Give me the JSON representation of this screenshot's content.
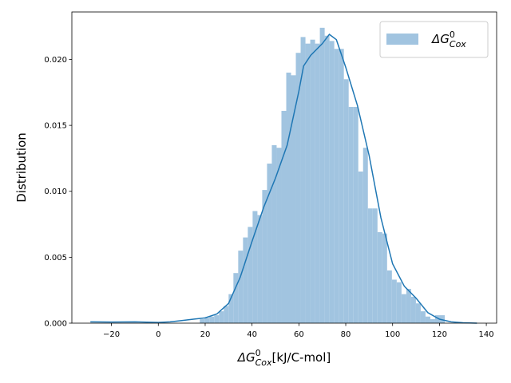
{
  "chart_data": {
    "type": "histogram",
    "xlabel": {
      "base": "ΔG",
      "sup": "0",
      "sub": "Cox",
      "rest": "[kJ/C-mol]"
    },
    "ylabel": "Distribution",
    "legend": {
      "base": "ΔG",
      "sup": "0",
      "sub": "Cox"
    },
    "legend_loc": "upper right",
    "bar_color": "#a1c4e0",
    "line_color": "#1f77b4",
    "bins": [
      17.7,
      19.75,
      21.8,
      23.85,
      25.9,
      27.95,
      30,
      32.05,
      34.1,
      36.15,
      38.2,
      40.25,
      42.3,
      44.35,
      46.4,
      48.45,
      50.5,
      52.55,
      54.6,
      56.65,
      58.7,
      60.75,
      62.8,
      64.85,
      66.9,
      68.95,
      71,
      73.05,
      75.1,
      77.15,
      79.2,
      81.25,
      83.3,
      85.35,
      87.4,
      89.45,
      91.5,
      93.55,
      95.6,
      97.65,
      99.7,
      101.75,
      103.8,
      105.85,
      107.9,
      109.95,
      112,
      114.05,
      116.1,
      118.15,
      120.2,
      122.25
    ],
    "counts": [
      0.0003,
      0.0004,
      0.0005,
      0.0006,
      0.0009,
      0.0013,
      0.0022,
      0.0038,
      0.0055,
      0.0065,
      0.0073,
      0.0085,
      0.0082,
      0.0101,
      0.0121,
      0.0135,
      0.0133,
      0.0161,
      0.019,
      0.0188,
      0.0205,
      0.0217,
      0.0212,
      0.0215,
      0.0212,
      0.0224,
      0.0218,
      0.0214,
      0.0208,
      0.0208,
      0.0185,
      0.0164,
      0.0164,
      0.0115,
      0.0133,
      0.0087,
      0.0087,
      0.0069,
      0.0068,
      0.004,
      0.0033,
      0.0031,
      0.0022,
      0.0026,
      0.002,
      0.0015,
      0.0009,
      0.0005,
      0.0003,
      0.0006,
      0.0006
    ],
    "kde": {
      "x": [
        -29,
        -20,
        -10,
        0,
        5,
        10,
        15,
        20,
        25,
        30,
        35,
        40,
        45,
        50,
        55,
        60,
        62,
        65,
        70,
        73,
        76,
        80,
        85,
        90,
        95,
        100,
        105,
        110,
        115,
        120,
        125,
        130,
        136
      ],
      "values": [
        0.0001,
        8e-05,
        0.0001,
        5e-05,
        0.0001,
        0.0002,
        0.0003,
        0.0004,
        0.0007,
        0.0015,
        0.0035,
        0.0062,
        0.0088,
        0.011,
        0.0135,
        0.0176,
        0.0195,
        0.0203,
        0.0212,
        0.0219,
        0.0215,
        0.0194,
        0.0165,
        0.0127,
        0.008,
        0.0045,
        0.0028,
        0.0019,
        0.0008,
        0.0003,
        0.0001,
        3e-05,
        0
      ]
    },
    "xlim": [
      -36.9,
      144.4
    ],
    "ylim": [
      0,
      0.0236
    ],
    "xticks": [
      {
        "value": -20,
        "label": "−20"
      },
      0,
      20,
      40,
      60,
      80,
      100,
      120,
      140
    ],
    "yticks": [
      {
        "value": 0,
        "label": "0.000"
      },
      {
        "value": 0.005,
        "label": "0.005"
      },
      {
        "value": 0.01,
        "label": "0.010"
      },
      {
        "value": 0.015,
        "label": "0.015"
      },
      {
        "value": 0.02,
        "label": "0.020"
      }
    ]
  }
}
